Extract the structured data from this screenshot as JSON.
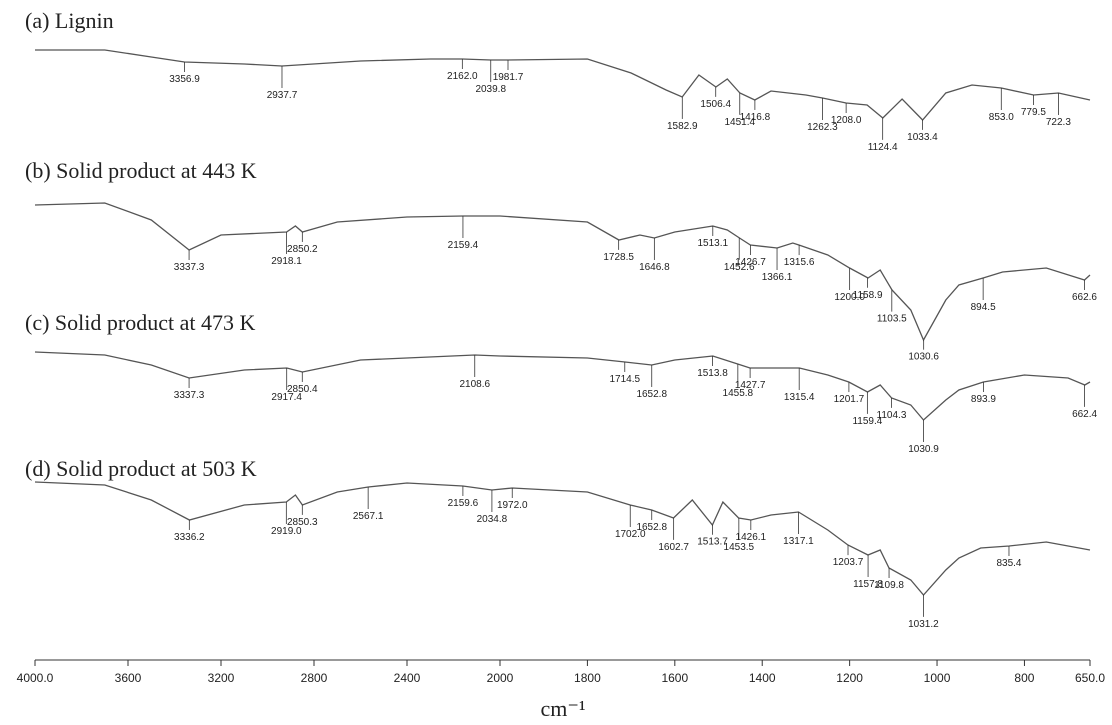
{
  "chart_data": {
    "type": "line",
    "x_label": "cm⁻¹",
    "xlim": [
      4000,
      650
    ],
    "x_scale_break": 2000,
    "xticks": [
      {
        "value": 4000,
        "label": "4000.0"
      },
      3600,
      3200,
      2800,
      2400,
      2000,
      1800,
      1600,
      1400,
      1200,
      1000,
      800,
      {
        "value": 650,
        "label": "650.0"
      }
    ],
    "color": "#555555",
    "series": [
      {
        "name": "(a) Lignin",
        "x": [
          4000,
          3700,
          3500,
          3357,
          3100,
          2938,
          2600,
          2300,
          2162,
          2040,
          1982,
          1800,
          1700,
          1620,
          1583,
          1545,
          1506,
          1480,
          1451,
          1417,
          1380,
          1300,
          1262,
          1208,
          1160,
          1124,
          1080,
          1033,
          980,
          920,
          853,
          779,
          722,
          650
        ],
        "values": [
          95,
          95,
          88,
          83,
          81,
          79,
          84,
          86,
          86,
          85,
          85,
          86,
          72,
          55,
          48,
          70,
          58,
          66,
          52,
          45,
          54,
          50,
          47,
          42,
          40,
          27,
          46,
          25,
          52,
          60,
          57,
          50,
          52,
          45
        ],
        "peaks": [
          3356.9,
          2937.7,
          {
            "value": 2162,
            "label": "2162.0"
          },
          2039.8,
          1981.7,
          1582.9,
          1506.4,
          1451.4,
          1416.8,
          1262.3,
          {
            "value": 1208,
            "label": "1208.0"
          },
          1124.4,
          1033.4,
          {
            "value": 853,
            "label": "853.0"
          },
          779.5,
          722.3
        ]
      },
      {
        "name": "(b) Solid product at 443 K",
        "x": [
          4000,
          3700,
          3500,
          3337,
          3200,
          2918,
          2880,
          2850,
          2700,
          2400,
          2159,
          2000,
          1800,
          1728,
          1680,
          1647,
          1600,
          1513,
          1480,
          1452,
          1427,
          1366,
          1330,
          1316,
          1250,
          1200,
          1158,
          1130,
          1103,
          1060,
          1031,
          980,
          950,
          894.5,
          850,
          750,
          662.6,
          650
        ],
        "values": [
          140,
          142,
          125,
          95,
          110,
          113,
          119,
          113,
          123,
          128,
          129,
          129,
          123,
          105,
          110,
          107,
          113,
          119,
          115,
          107,
          100,
          97,
          102,
          100,
          90,
          77,
          67,
          75,
          55,
          35,
          5,
          45,
          60,
          67,
          73,
          77,
          65,
          70
        ],
        "peaks": [
          3337.3,
          2918.1,
          2850.2,
          2159.4,
          1728.5,
          1646.8,
          1513.1,
          1452.6,
          1426.7,
          1366.1,
          1315.6,
          {
            "value": 1200,
            "label": "1200.0"
          },
          1158.9,
          1103.5,
          1030.6,
          894.5,
          662.6
        ]
      },
      {
        "name": "(c) Solid product at 473 K",
        "x": [
          4000,
          3700,
          3500,
          3337,
          3100,
          2917,
          2850,
          2600,
          2108,
          2000,
          1800,
          1714,
          1653,
          1600,
          1513,
          1456,
          1428,
          1315,
          1250,
          1202,
          1159,
          1130,
          1104,
          1060,
          1031,
          980,
          950,
          894,
          800,
          700,
          662,
          650
        ],
        "values": [
          68,
          65,
          55,
          42,
          50,
          52,
          48,
          60,
          65,
          64,
          62,
          58,
          55,
          60,
          64,
          56,
          52,
          52,
          45,
          38,
          28,
          35,
          22,
          15,
          0,
          20,
          30,
          38,
          45,
          42,
          35,
          38
        ],
        "peaks": [
          3337.3,
          2917.4,
          2850.4,
          2108.6,
          1714.5,
          1652.8,
          1513.8,
          1455.8,
          1427.7,
          1315.4,
          1201.7,
          1159.4,
          1104.3,
          1030.9,
          893.9,
          662.4
        ]
      },
      {
        "name": "(d) Solid product at 503 K",
        "x": [
          4000,
          3700,
          3500,
          3336,
          3100,
          2919,
          2880,
          2850,
          2700,
          2567,
          2400,
          2160,
          2035,
          1972,
          1800,
          1702,
          1653,
          1603,
          1560,
          1514,
          1490,
          1454,
          1426,
          1380,
          1317,
          1250,
          1204,
          1158,
          1130,
          1110,
          1060,
          1031,
          980,
          950,
          900,
          835,
          750,
          650
        ],
        "values": [
          118,
          115,
          100,
          80,
          95,
          98,
          105,
          95,
          108,
          113,
          117,
          114,
          110,
          112,
          108,
          95,
          90,
          82,
          100,
          75,
          98,
          82,
          80,
          85,
          88,
          70,
          55,
          45,
          50,
          32,
          20,
          5,
          30,
          42,
          52,
          54,
          58,
          50
        ],
        "peaks": [
          3336.2,
          {
            "value": 2919,
            "label": "2919.0"
          },
          2850.3,
          2567.1,
          2159.6,
          2034.8,
          {
            "value": 1972,
            "label": "1972.0"
          },
          {
            "value": 1702,
            "label": "1702.0"
          },
          1652.8,
          1602.7,
          1513.7,
          1453.5,
          1426.1,
          1317.1,
          1203.7,
          1157.8,
          1109.8,
          1031.2,
          835.4
        ]
      }
    ]
  }
}
